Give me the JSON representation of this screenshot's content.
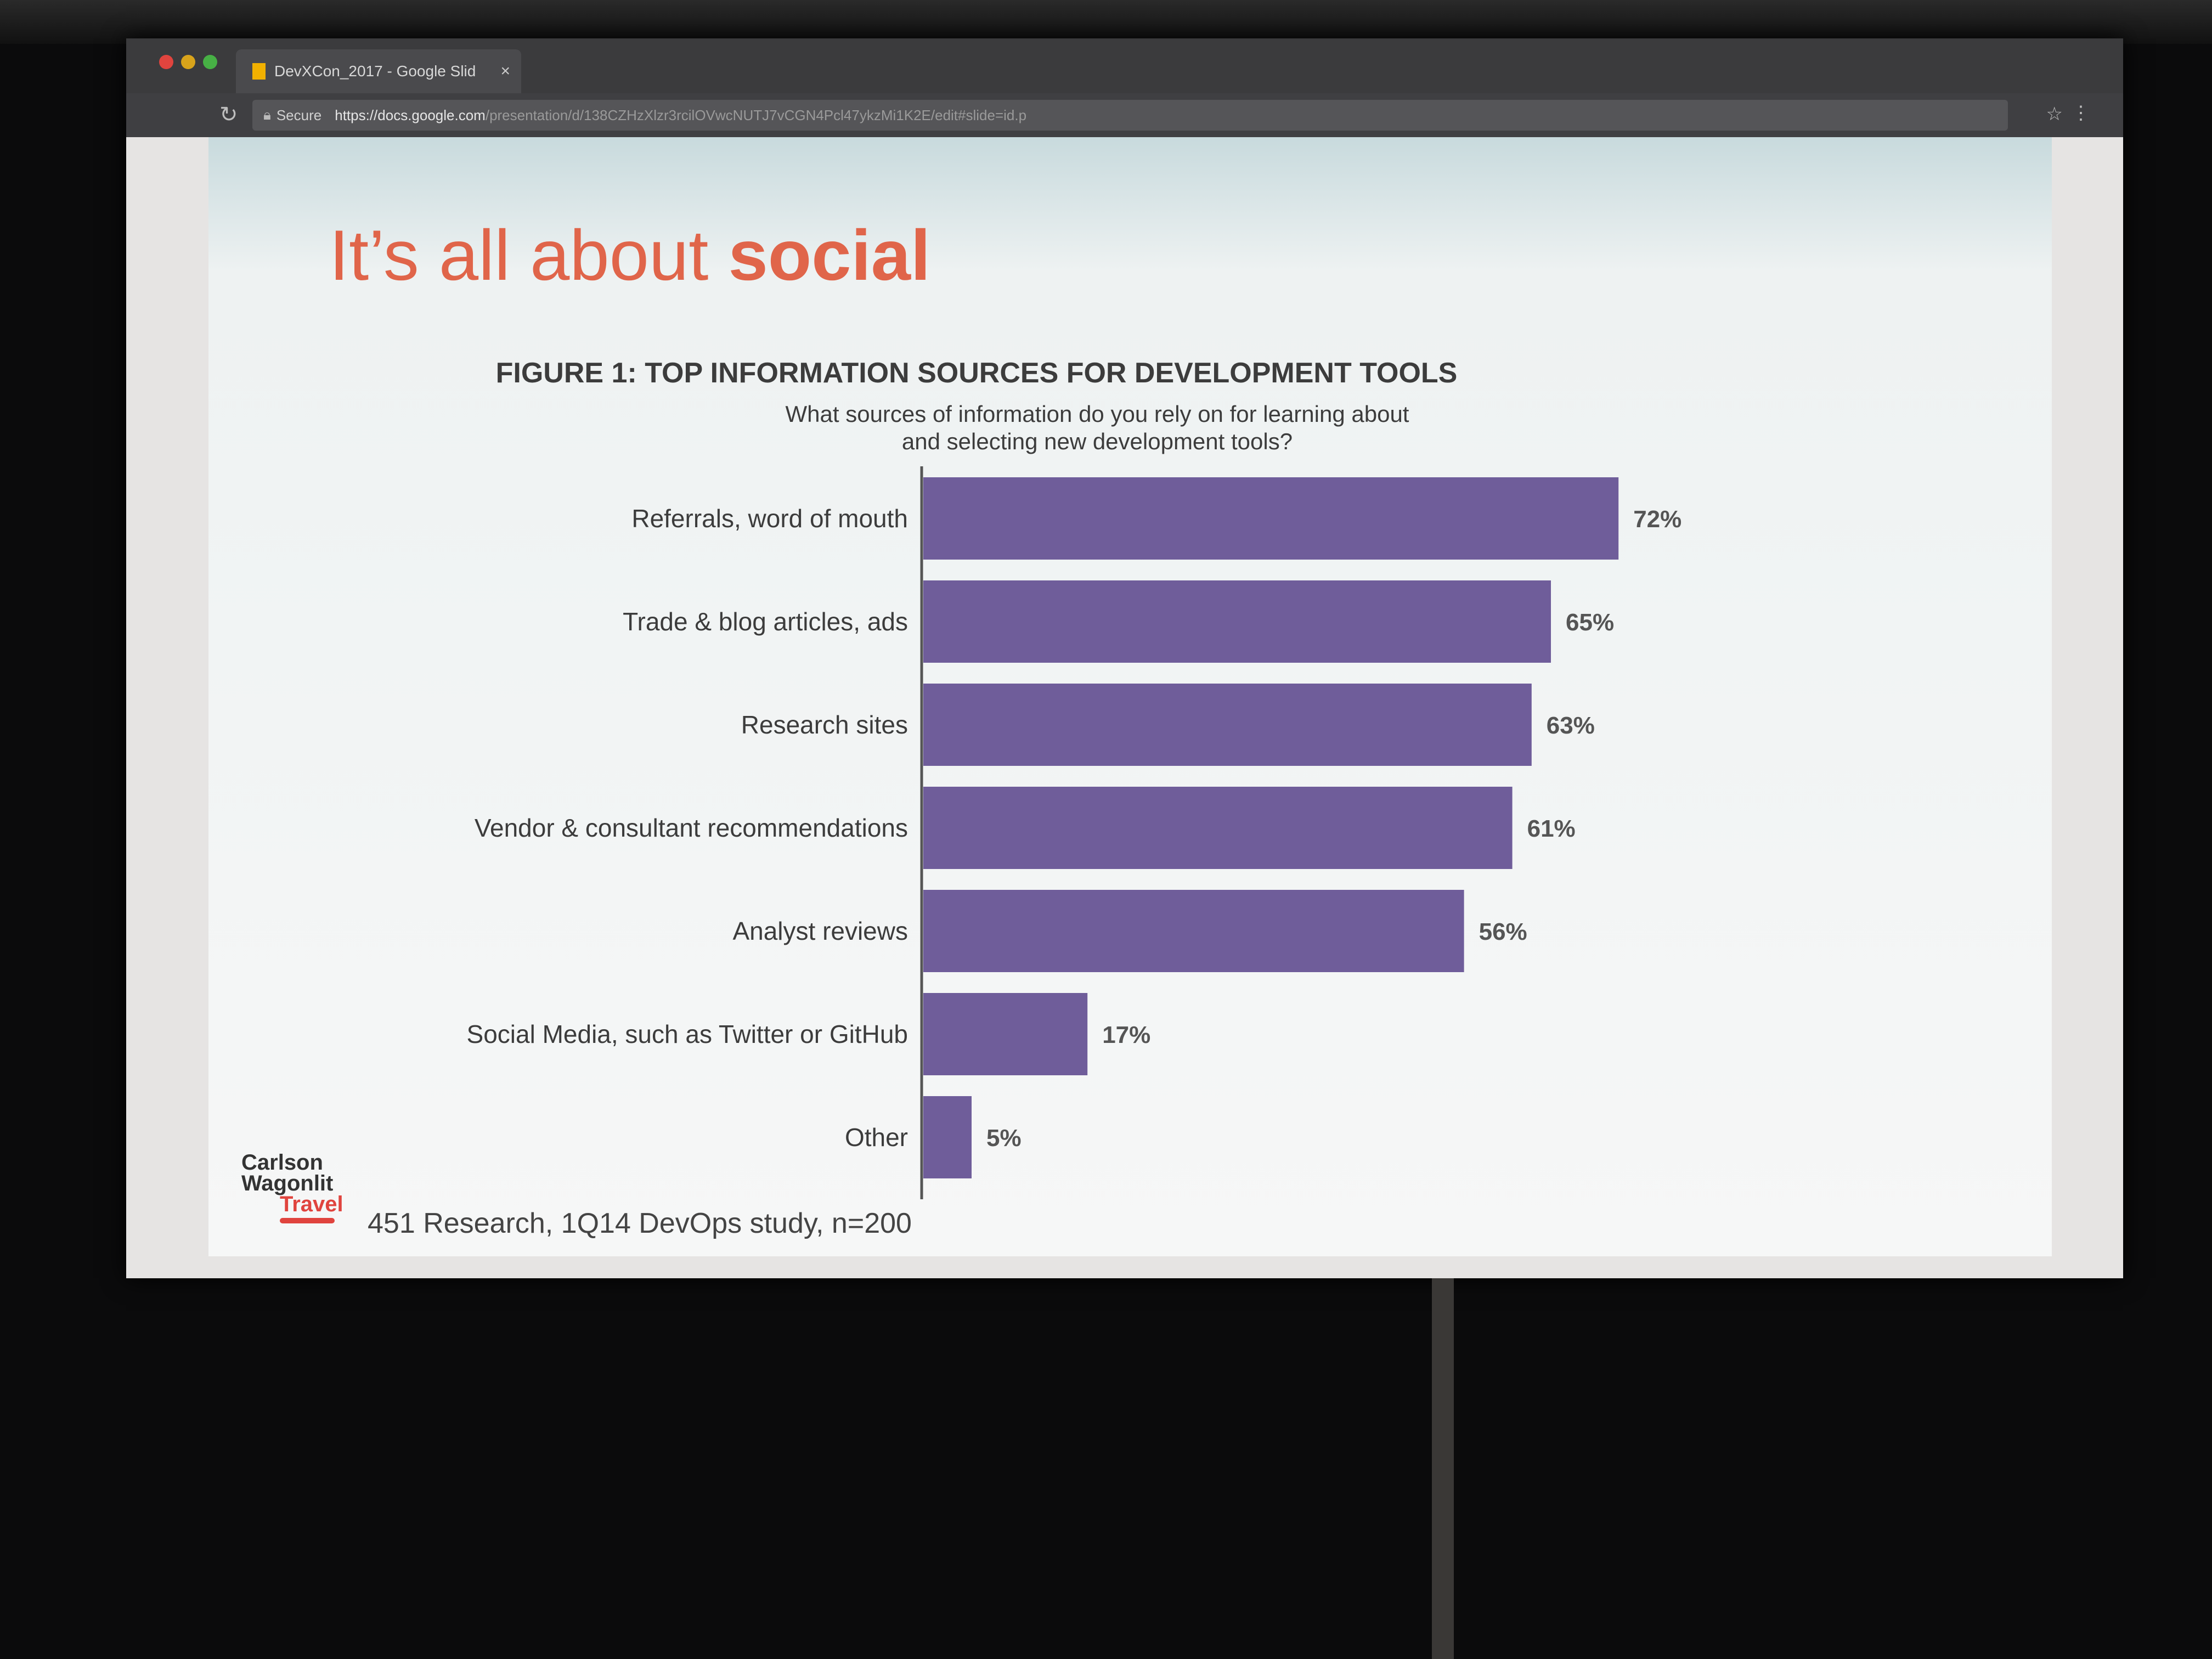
{
  "browser": {
    "tab_title": "DevXCon_2017 - Google Slid",
    "secure_label": "Secure",
    "url_host": "https://docs.google.com",
    "url_path": "/presentation/d/138CZHzXlzr3rcilOVwcNUTJ7vCGN4Pcl47ykzMi1K2E/edit#slide=id.p"
  },
  "slide": {
    "title_regular": "It’s all about ",
    "title_bold": "social",
    "figure_title": "FIGURE 1: TOP INFORMATION SOURCES FOR DEVELOPMENT TOOLS",
    "figure_question_line1": "What sources of information do you rely on for learning about",
    "figure_question_line2": "and selecting new development tools?",
    "source_note": "451 Research, 1Q14 DevOps study, n=200",
    "logo_line1": "Carlson",
    "logo_line2": "Wagonlit",
    "logo_line3": "Travel"
  },
  "colors": {
    "title": "#e0654a",
    "bar": "#6f5d9a",
    "text": "#3c3c3c"
  },
  "icons": [
    "close-icon",
    "reload-icon",
    "lock-icon",
    "star-icon",
    "menu-icon"
  ],
  "chart_data": {
    "type": "bar",
    "orientation": "horizontal",
    "title": "FIGURE 1: TOP INFORMATION SOURCES FOR DEVELOPMENT TOOLS",
    "subtitle": "What sources of information do you rely on for learning about and selecting new development tools?",
    "categories": [
      "Referrals, word of mouth",
      "Trade & blog articles, ads",
      "Research sites",
      "Vendor & consultant recommendations",
      "Analyst reviews",
      "Social Media, such as Twitter or GitHub",
      "Other"
    ],
    "values": [
      72,
      65,
      63,
      61,
      56,
      17,
      5
    ],
    "value_labels": [
      "72%",
      "65%",
      "63%",
      "61%",
      "56%",
      "17%",
      "5%"
    ],
    "xlim": [
      0,
      100
    ],
    "grid": false
  }
}
